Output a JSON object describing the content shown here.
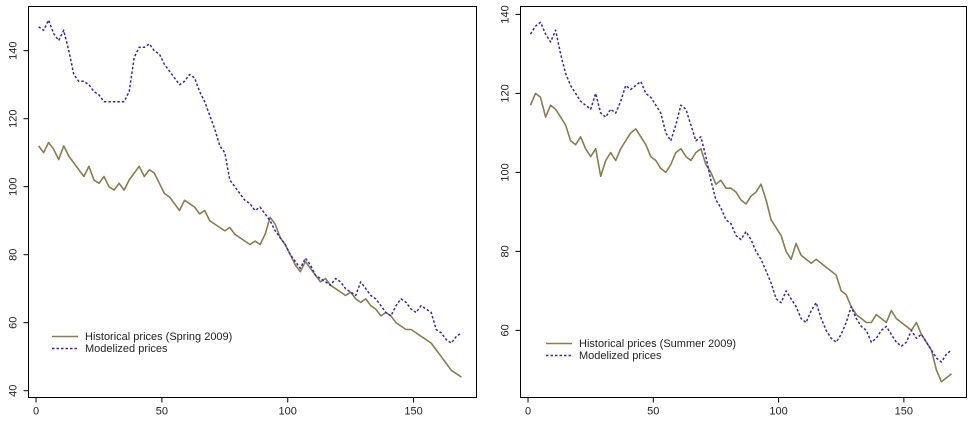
{
  "chart_data": [
    {
      "type": "line",
      "title": "",
      "xlabel": "",
      "ylabel": "",
      "xlim": [
        -3,
        175
      ],
      "ylim": [
        38,
        153
      ],
      "xticks": [
        0,
        50,
        100,
        150
      ],
      "yticks": [
        40,
        60,
        80,
        100,
        120,
        140
      ],
      "legend": "bottom-left",
      "series": [
        {
          "name": "Historical prices (Spring 2009)",
          "color": "#8b7d4b",
          "dash": "solid",
          "x": [
            1,
            3,
            5,
            7,
            9,
            11,
            13,
            15,
            17,
            19,
            21,
            23,
            25,
            27,
            29,
            31,
            33,
            35,
            37,
            39,
            41,
            43,
            45,
            47,
            49,
            51,
            53,
            55,
            57,
            59,
            61,
            63,
            65,
            67,
            69,
            71,
            73,
            75,
            77,
            79,
            81,
            83,
            85,
            87,
            89,
            91,
            93,
            95,
            97,
            99,
            101,
            103,
            105,
            107,
            109,
            111,
            113,
            115,
            117,
            119,
            121,
            123,
            125,
            127,
            129,
            131,
            133,
            135,
            137,
            139,
            141,
            143,
            145,
            147,
            149,
            151,
            153,
            155,
            157,
            159,
            161,
            163,
            165,
            167,
            169
          ],
          "y": [
            112,
            110,
            113,
            111,
            108,
            112,
            109,
            107,
            105,
            103,
            106,
            102,
            101,
            103,
            100,
            99,
            101,
            99,
            102,
            104,
            106,
            103,
            105,
            104,
            101,
            98,
            97,
            95,
            93,
            96,
            95,
            94,
            92,
            93,
            90,
            89,
            88,
            87,
            88,
            86,
            85,
            84,
            83,
            84,
            83,
            86,
            91,
            89,
            85,
            83,
            80,
            77,
            75,
            78,
            76,
            74,
            72,
            73,
            71,
            70,
            69,
            68,
            69,
            67,
            66,
            67,
            65,
            64,
            62,
            63,
            62,
            60,
            59,
            58,
            58,
            57,
            56,
            55,
            54,
            52,
            50,
            48,
            46,
            45,
            44
          ]
        },
        {
          "name": "Modelized prices",
          "color": "#3a1fcc",
          "dash": "dotted",
          "x": [
            1,
            3,
            5,
            7,
            9,
            11,
            13,
            15,
            17,
            19,
            21,
            23,
            25,
            27,
            29,
            31,
            33,
            35,
            37,
            39,
            41,
            43,
            45,
            47,
            49,
            51,
            53,
            55,
            57,
            59,
            61,
            63,
            65,
            67,
            69,
            71,
            73,
            75,
            77,
            79,
            81,
            83,
            85,
            87,
            89,
            91,
            93,
            95,
            97,
            99,
            101,
            103,
            105,
            107,
            109,
            111,
            113,
            115,
            117,
            119,
            121,
            123,
            125,
            127,
            129,
            131,
            133,
            135,
            137,
            139,
            141,
            143,
            145,
            147,
            149,
            151,
            153,
            155,
            157,
            159,
            161,
            163,
            165,
            167,
            169
          ],
          "y": [
            147,
            146,
            149,
            145,
            143,
            146,
            140,
            133,
            131,
            131,
            130,
            128,
            127,
            125,
            125,
            125,
            125,
            125,
            128,
            138,
            141,
            141,
            142,
            140,
            139,
            136,
            134,
            132,
            130,
            131,
            133,
            132,
            128,
            125,
            121,
            117,
            112,
            110,
            102,
            100,
            98,
            96,
            95,
            93,
            94,
            92,
            90,
            87,
            85,
            83,
            80,
            78,
            76,
            79,
            77,
            74,
            73,
            72,
            71,
            73,
            72,
            70,
            69,
            68,
            72,
            70,
            68,
            67,
            65,
            63,
            62,
            65,
            67,
            66,
            64,
            63,
            65,
            64,
            63,
            58,
            57,
            55,
            54,
            56,
            57
          ]
        }
      ]
    },
    {
      "type": "line",
      "title": "",
      "xlabel": "",
      "ylabel": "",
      "xlim": [
        -3,
        175
      ],
      "ylim": [
        43,
        142
      ],
      "xticks": [
        0,
        50,
        100,
        150
      ],
      "yticks": [
        60,
        80,
        100,
        120,
        140
      ],
      "legend": "bottom-left",
      "series": [
        {
          "name": "Historical prices (Summer 2009)",
          "color": "#8b7d4b",
          "dash": "solid",
          "x": [
            1,
            3,
            5,
            7,
            9,
            11,
            13,
            15,
            17,
            19,
            21,
            23,
            25,
            27,
            29,
            31,
            33,
            35,
            37,
            39,
            41,
            43,
            45,
            47,
            49,
            51,
            53,
            55,
            57,
            59,
            61,
            63,
            65,
            67,
            69,
            71,
            73,
            75,
            77,
            79,
            81,
            83,
            85,
            87,
            89,
            91,
            93,
            95,
            97,
            99,
            101,
            103,
            105,
            107,
            109,
            111,
            113,
            115,
            117,
            119,
            121,
            123,
            125,
            127,
            129,
            131,
            133,
            135,
            137,
            139,
            141,
            143,
            145,
            147,
            149,
            151,
            153,
            155,
            157,
            159,
            161,
            163,
            165,
            167,
            169
          ],
          "y": [
            117,
            120,
            119,
            114,
            117,
            116,
            114,
            112,
            108,
            107,
            109,
            106,
            104,
            106,
            99,
            103,
            105,
            103,
            106,
            108,
            110,
            111,
            109,
            107,
            104,
            103,
            101,
            100,
            102,
            105,
            106,
            104,
            103,
            105,
            106,
            102,
            100,
            97,
            98,
            96,
            96,
            95,
            93,
            92,
            94,
            95,
            97,
            93,
            88,
            86,
            84,
            80,
            78,
            82,
            79,
            78,
            77,
            78,
            77,
            76,
            75,
            74,
            70,
            69,
            66,
            64,
            63,
            62,
            62,
            64,
            63,
            62,
            65,
            63,
            62,
            61,
            60,
            62,
            59,
            57,
            55,
            50,
            47,
            48,
            49
          ]
        },
        {
          "name": "Modelized prices",
          "color": "#3a1fcc",
          "dash": "dotted",
          "x": [
            1,
            3,
            5,
            7,
            9,
            11,
            13,
            15,
            17,
            19,
            21,
            23,
            25,
            27,
            29,
            31,
            33,
            35,
            37,
            39,
            41,
            43,
            45,
            47,
            49,
            51,
            53,
            55,
            57,
            59,
            61,
            63,
            65,
            67,
            69,
            71,
            73,
            75,
            77,
            79,
            81,
            83,
            85,
            87,
            89,
            91,
            93,
            95,
            97,
            99,
            101,
            103,
            105,
            107,
            109,
            111,
            113,
            115,
            117,
            119,
            121,
            123,
            125,
            127,
            129,
            131,
            133,
            135,
            137,
            139,
            141,
            143,
            145,
            147,
            149,
            151,
            153,
            155,
            157,
            159,
            161,
            163,
            165,
            167,
            169
          ],
          "y": [
            135,
            137,
            138,
            135,
            133,
            136,
            130,
            125,
            122,
            120,
            118,
            117,
            116,
            120,
            115,
            114,
            116,
            115,
            118,
            122,
            121,
            122,
            123,
            120,
            119,
            117,
            115,
            110,
            108,
            112,
            117,
            116,
            112,
            108,
            109,
            104,
            98,
            93,
            91,
            88,
            87,
            84,
            83,
            85,
            83,
            80,
            78,
            75,
            72,
            68,
            67,
            70,
            68,
            66,
            63,
            62,
            65,
            67,
            63,
            60,
            58,
            57,
            59,
            62,
            66,
            63,
            61,
            60,
            57,
            58,
            60,
            61,
            59,
            57,
            56,
            57,
            60,
            58,
            59,
            57,
            55,
            53,
            52,
            54,
            55
          ]
        }
      ]
    }
  ]
}
